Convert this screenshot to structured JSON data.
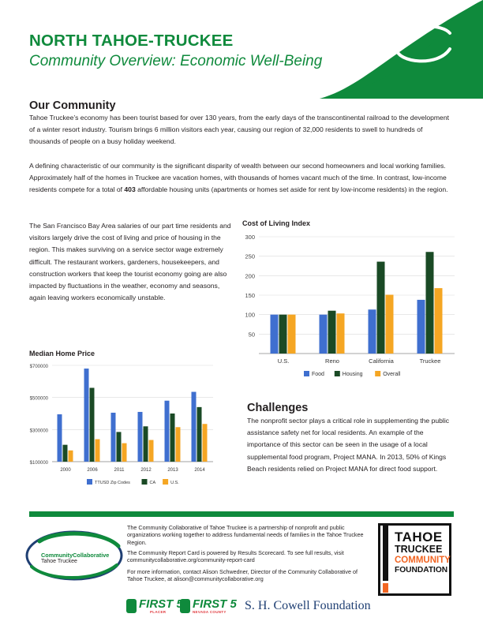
{
  "header": {
    "title": "NORTH TAHOE-TRUCKEE",
    "subtitle": "Community Overview: Economic Well-Being"
  },
  "our_community": {
    "heading": "Our Community",
    "p1": "Tahoe Truckee’s economy has been tourist based for over 130 years, from the early days of the transcontinental railroad to the development of a winter resort industry. Tourism brings 6 million visitors each year, causing our region of 32,000 residents to swell to hundreds of thousands of people on a busy holiday weekend.",
    "p2_before": "A defining characteristic of our community is the significant disparity of wealth between our second homeowners and local working families. Approximately half of the homes in Truckee are vacation homes, with thousands of homes vacant much of the time. In contrast, low-income residents compete for a total of ",
    "p2_bold": "403",
    "p2_after": " affordable housing units (apartments or homes set aside for rent by low-income residents) in the region.",
    "p3": "The San Francisco Bay Area salaries of our part time residents and visitors largely drive the cost of living and price of housing in the region. This makes surviving on a service sector wage extremely difficult. The restaurant workers, gardeners, housekeepers, and construction workers that keep the tourist economy going are also impacted by fluctuations in the weather, economy and seasons, again leaving workers economically unstable."
  },
  "challenges": {
    "heading": "Challenges",
    "text": "The nonprofit sector plays a critical role in supplementing the public assistance safety net for local residents. An example of the importance of this sector can be seen in the usage of a local supplemental food program, Project MANA. In 2013, 50% of Kings Beach residents relied on Project MANA for direct food support."
  },
  "chart_data": [
    {
      "type": "bar",
      "title": "Cost of Living Index",
      "categories": [
        "U.S.",
        "Reno",
        "California",
        "Truckee"
      ],
      "series": [
        {
          "name": "Food",
          "values": [
            100,
            100,
            113,
            138
          ],
          "color": "#3f6fcf"
        },
        {
          "name": "Housing",
          "values": [
            100,
            110,
            236,
            261
          ],
          "color": "#1a4a25"
        },
        {
          "name": "Overall",
          "values": [
            100,
            103,
            151,
            168
          ],
          "color": "#f5a623"
        }
      ],
      "yticks": [
        50,
        100,
        150,
        200,
        250,
        300
      ],
      "ylim": [
        0,
        300
      ],
      "legend": "bottom"
    },
    {
      "type": "bar",
      "title": "Median Home Price",
      "categories": [
        "2000",
        "2006",
        "2011",
        "2012",
        "2013",
        "2014"
      ],
      "series": [
        {
          "name": "TTUSD Zip Codes",
          "values": [
            395000,
            680000,
            405000,
            410000,
            480000,
            535000
          ],
          "color": "#3f6fcf"
        },
        {
          "name": "CA",
          "values": [
            205000,
            560000,
            285000,
            320000,
            400000,
            440000
          ],
          "color": "#1a4a25"
        },
        {
          "name": "U.S.",
          "values": [
            170000,
            240000,
            215000,
            235000,
            315000,
            335000
          ],
          "color": "#f5a623"
        }
      ],
      "yticks": [
        100000,
        300000,
        500000,
        700000
      ],
      "ytick_labels": [
        "$100000",
        "$300000",
        "$500000",
        "$700000"
      ],
      "ylim": [
        100000,
        700000
      ],
      "legend": "bottom"
    }
  ],
  "footer": {
    "p1": "The Community Collaborative of Tahoe Truckee is a partnership of nonprofit and public organizations working together to address fundamental needs of families in the Tahoe Truckee Region.",
    "p2": "The Community Report Card is powered by Results Scorecard. To see full results, visit communitycollaborative.org/community-report-card",
    "p3": "For more information, contact Alison Schwedner, Director of the Community Collaborative of Tahoe Truckee, at alison@communitycollaborative.org",
    "cc_logo_a": "Community",
    "cc_logo_b": "Collaborative",
    "cc_logo_c": "Tahoe Truckee",
    "ttcf_1": "TAHOE",
    "ttcf_2": "TRUCKEE",
    "ttcf_3": "COMMUNITY",
    "ttcf_4": "FOUNDATION",
    "first5_a": "FIRST 5",
    "first5_a_sub": "PLACER",
    "first5_b": "FIRST 5",
    "first5_b_sub": "NEVADA COUNTY",
    "cowell": "S. H. Cowell Foundation"
  }
}
